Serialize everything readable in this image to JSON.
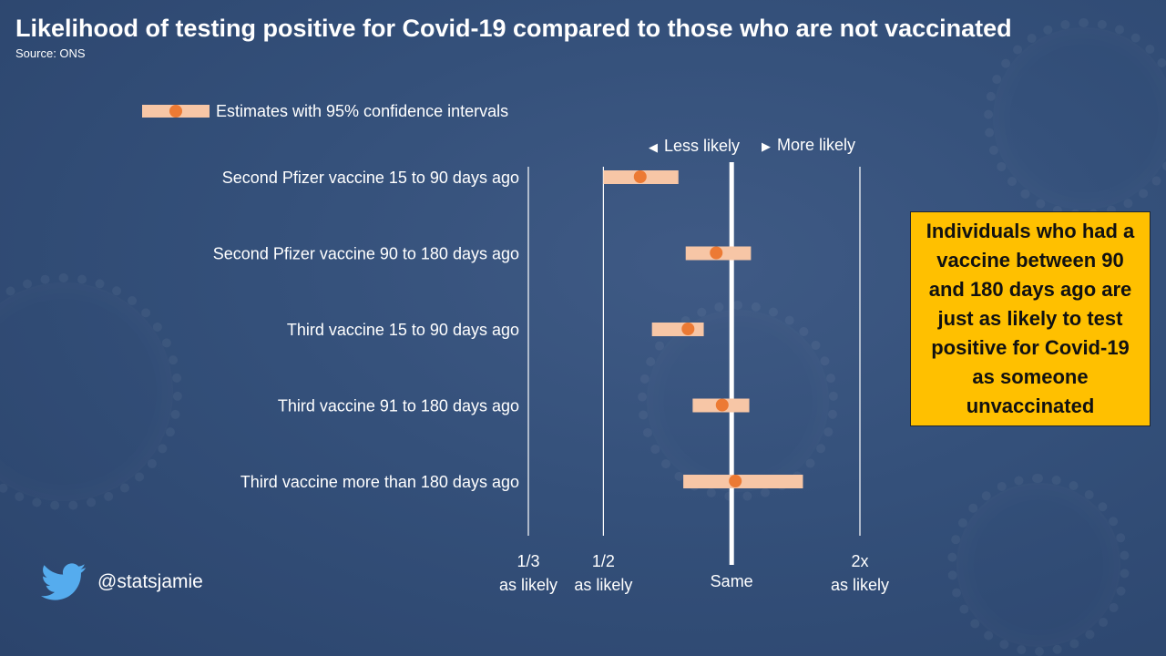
{
  "header": {
    "title": "Likelihood of testing positive for Covid-19 compared to those who are not vaccinated",
    "source": "Source: ONS"
  },
  "legend": {
    "label": "Estimates with 95% confidence intervals"
  },
  "direction": {
    "less": "Less likely",
    "more": "More likely",
    "less_arrow": "◀",
    "more_arrow": "▶"
  },
  "callout": {
    "text": "Individuals who had a vaccine between 90 and 180 days ago are just as likely to test positive for Covid-19 as someone unvaccinated"
  },
  "twitter": {
    "handle": "@statsjamie",
    "icon": "twitter-bird-icon"
  },
  "colors": {
    "interval": "#f7c6a6",
    "estimate": "#ec7a34",
    "callout": "#ffc000",
    "reference": "#ffffff"
  },
  "chart_data": {
    "type": "forest",
    "title": "Likelihood of testing positive for Covid-19 compared to those who are not vaccinated",
    "scale": "log2",
    "xlim": [
      0.3333,
      2
    ],
    "reference_value": 1,
    "xticks": [
      {
        "value": 0.3333,
        "line1": "1/3",
        "line2": "as likely"
      },
      {
        "value": 0.5,
        "line1": "1/2",
        "line2": "as likely"
      },
      {
        "value": 1,
        "line1": "",
        "line2": "Same"
      },
      {
        "value": 2,
        "line1": "2x",
        "line2": "as likely"
      }
    ],
    "categories": [
      "Second Pfizer vaccine 15 to 90 days ago",
      "Second Pfizer vaccine 90 to 180 days ago",
      "Third vaccine 15 to 90 days ago",
      "Third vaccine 91 to 180 days ago",
      "Third vaccine more than 180 days ago"
    ],
    "estimates": [
      0.61,
      0.92,
      0.79,
      0.95,
      1.02
    ],
    "lower": [
      0.5,
      0.78,
      0.65,
      0.81,
      0.77
    ],
    "upper": [
      0.75,
      1.11,
      0.86,
      1.1,
      1.47
    ]
  }
}
